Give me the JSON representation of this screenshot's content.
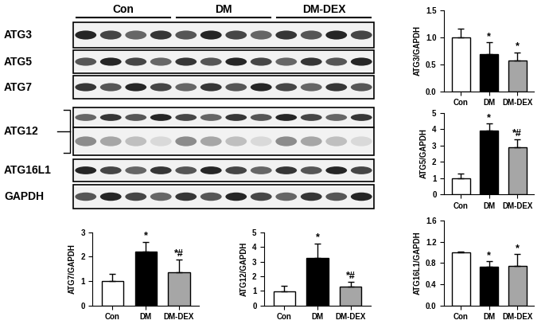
{
  "blot": {
    "groups": [
      "Con",
      "DM",
      "DM-DEX"
    ],
    "rows": [
      "ATG3",
      "ATG5",
      "ATG7",
      "ATG12",
      "ATG16L1",
      "GAPDH"
    ]
  },
  "chart_data": [
    {
      "type": "bar",
      "ylabel": "ATG3/GAPDH",
      "categories": [
        "Con",
        "DM",
        "DM-DEX"
      ],
      "values": [
        1.0,
        0.68,
        0.57
      ],
      "errors": [
        0.15,
        0.22,
        0.15
      ],
      "annotations": [
        null,
        "*",
        "*"
      ],
      "colors": [
        "#ffffff",
        "#000000",
        "#a6a6a6"
      ],
      "ylim": [
        0,
        1.5
      ],
      "yticks": [
        {
          "value": 0,
          "label": "0.0"
        },
        {
          "value": 0.5,
          "label": "0.5"
        },
        {
          "value": 1.0,
          "label": "1.0"
        },
        {
          "value": 1.5,
          "label": "1.5"
        }
      ]
    },
    {
      "type": "bar",
      "ylabel": "ATG5/GAPDH",
      "categories": [
        "Con",
        "DM",
        "DM-DEX"
      ],
      "values": [
        1.0,
        3.9,
        2.9
      ],
      "errors": [
        0.25,
        0.45,
        0.45
      ],
      "annotations": [
        null,
        "*",
        "*#"
      ],
      "colors": [
        "#ffffff",
        "#000000",
        "#a6a6a6"
      ],
      "ylim": [
        0,
        5
      ],
      "yticks": [
        0,
        1,
        2,
        3,
        4,
        5
      ]
    },
    {
      "type": "bar",
      "ylabel": "ATG16L1/GAPDH",
      "categories": [
        "Con",
        "DM",
        "DM-DEX"
      ],
      "values": [
        1.0,
        0.73,
        0.75
      ],
      "errors": [
        0.02,
        0.1,
        0.22
      ],
      "annotations": [
        null,
        "*",
        "*"
      ],
      "colors": [
        "#ffffff",
        "#000000",
        "#a6a6a6"
      ],
      "ylim": [
        0,
        1.6
      ],
      "yticks": [
        {
          "value": 0,
          "label": "0.0"
        },
        {
          "value": 0.4,
          "label": "0.4"
        },
        {
          "value": 0.8,
          "label": "0.8"
        },
        {
          "value": 1.2,
          "label": "1.2"
        },
        {
          "value": 1.6,
          "label": "1.6"
        }
      ]
    },
    {
      "type": "bar",
      "ylabel": "ATG7/GAPDH",
      "categories": [
        "Con",
        "DM",
        "DM-DEX"
      ],
      "values": [
        1.0,
        2.2,
        1.37
      ],
      "errors": [
        0.3,
        0.42,
        0.5
      ],
      "annotations": [
        null,
        "*",
        "*#"
      ],
      "colors": [
        "#ffffff",
        "#000000",
        "#a6a6a6"
      ],
      "ylim": [
        0,
        3
      ],
      "yticks": [
        0,
        1,
        2,
        3
      ]
    },
    {
      "type": "bar",
      "ylabel": "ATG12/GAPDH",
      "categories": [
        "Con",
        "DM",
        "DM-DEX"
      ],
      "values": [
        0.97,
        3.25,
        1.3
      ],
      "errors": [
        0.4,
        1.0,
        0.3
      ],
      "annotations": [
        null,
        "*",
        "*#"
      ],
      "colors": [
        "#ffffff",
        "#000000",
        "#a6a6a6"
      ],
      "ylim": [
        0,
        5
      ],
      "yticks": [
        0,
        1,
        2,
        3,
        4,
        5
      ]
    }
  ]
}
